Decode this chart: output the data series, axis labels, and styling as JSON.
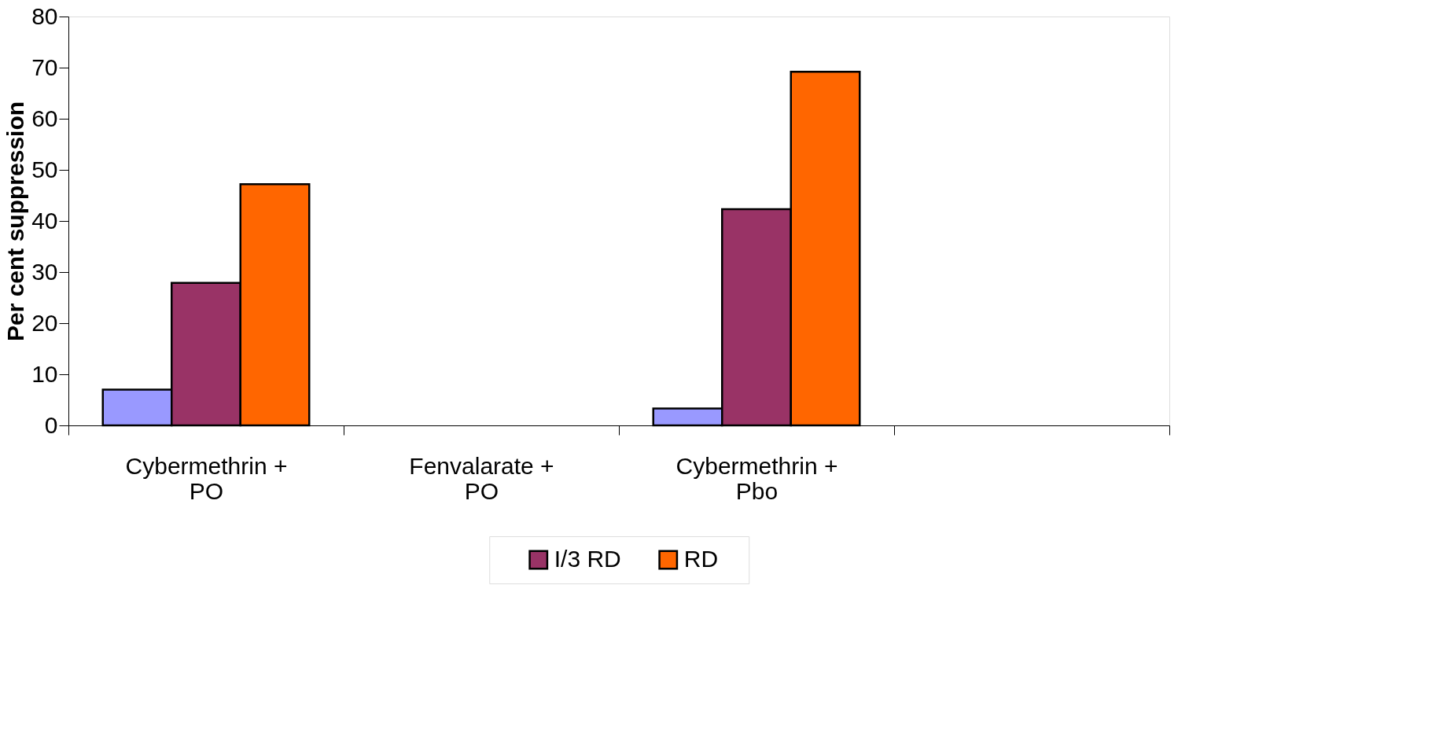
{
  "chart_data": {
    "type": "bar",
    "ylabel": "Per cent suppression",
    "categories": [
      "Cybermethrin + PO",
      "Fenvalarate + PO",
      "Cybermethrin + Pbo",
      null
    ],
    "series": [
      {
        "color": "#9999ff",
        "values": [
          7.0,
          null,
          3.3,
          null
        ]
      },
      {
        "name": "I/3 RD",
        "color": "#993366",
        "values": [
          27.9,
          null,
          42.3,
          null
        ]
      },
      {
        "name": "RD",
        "color": "#ff6600",
        "values": [
          47.2,
          null,
          69.2,
          null
        ]
      }
    ],
    "ylim": [
      0,
      80
    ],
    "yticks": [
      0,
      10,
      20,
      30,
      40,
      50,
      60,
      70,
      80
    ],
    "grid": false,
    "legend": "bottom"
  }
}
